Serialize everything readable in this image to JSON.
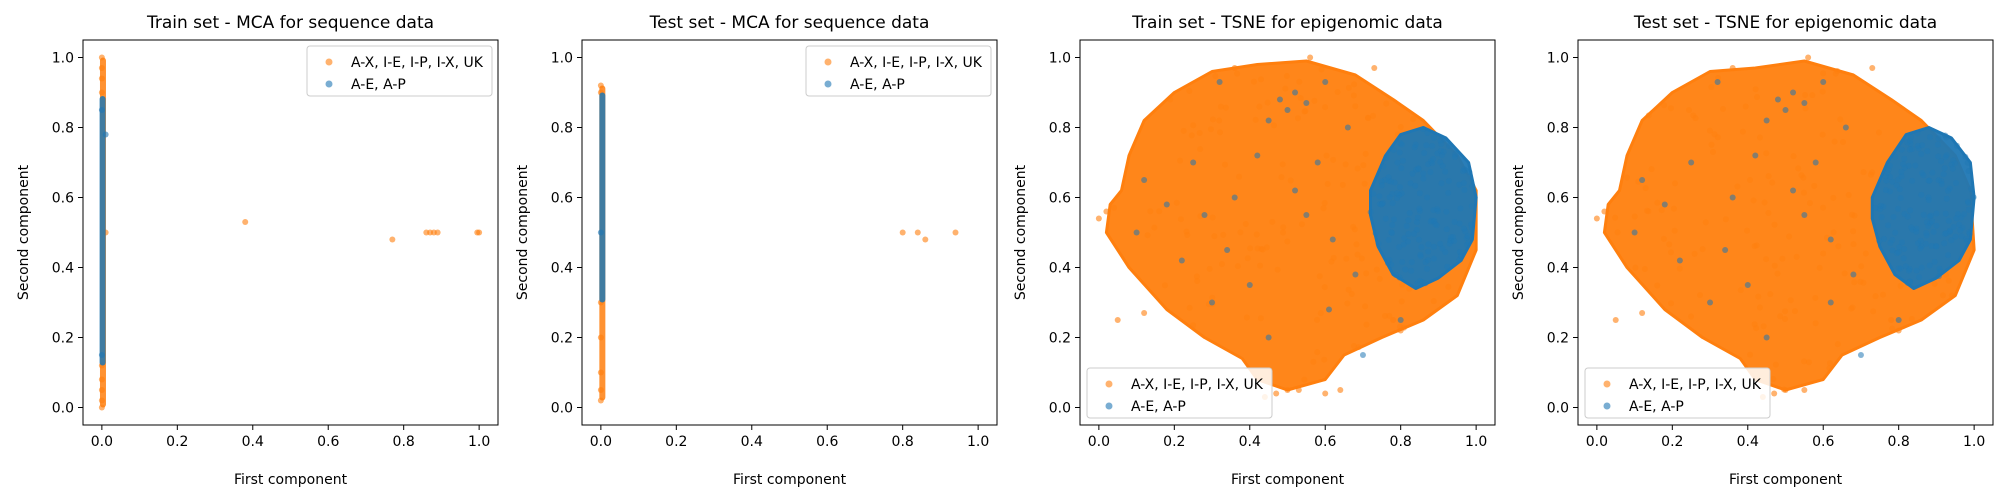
{
  "chart_data": [
    {
      "type": "scatter",
      "title": "Train set - MCA for sequence data",
      "xlabel": "First component",
      "ylabel": "Second component",
      "xlim": [
        -0.05,
        1.05
      ],
      "ylim": [
        -0.05,
        1.05
      ],
      "xticks": [
        "0.0",
        "0.2",
        "0.4",
        "0.6",
        "0.8",
        "1.0"
      ],
      "yticks": [
        "0.0",
        "0.2",
        "0.4",
        "0.6",
        "0.8",
        "1.0"
      ],
      "legend_position": "top-right",
      "series": [
        {
          "name": "A-X, I-E, I-P, I-X, UK",
          "color": "#ff7f0e",
          "points": [
            [
              0.0,
              0.0
            ],
            [
              0.0,
              0.02
            ],
            [
              0.0,
              0.05
            ],
            [
              0.0,
              0.08
            ],
            [
              0.0,
              0.12
            ],
            [
              0.0,
              0.9
            ],
            [
              0.0,
              0.94
            ],
            [
              0.0,
              0.97
            ],
            [
              0.0,
              1.0
            ],
            [
              0.01,
              0.5
            ],
            [
              0.38,
              0.53
            ],
            [
              0.77,
              0.48
            ],
            [
              0.86,
              0.5
            ],
            [
              0.87,
              0.5
            ],
            [
              0.88,
              0.5
            ],
            [
              0.89,
              0.5
            ],
            [
              1.0,
              0.5
            ],
            [
              0.995,
              0.5
            ]
          ],
          "vband": {
            "x": [
              -0.005,
              0.005
            ],
            "y": [
              0.0,
              1.0
            ]
          }
        },
        {
          "name": "A-E, A-P",
          "color": "#1f77b4",
          "points": [
            [
              0.01,
              0.78
            ],
            [
              0.0,
              0.15
            ],
            [
              0.0,
              0.85
            ]
          ],
          "vband": {
            "x": [
              -0.006,
              0.006
            ],
            "y": [
              0.12,
              0.89
            ]
          }
        }
      ]
    },
    {
      "type": "scatter",
      "title": "Test set - MCA for sequence data",
      "xlabel": "First component",
      "ylabel": "Second component",
      "xlim": [
        -0.05,
        1.05
      ],
      "ylim": [
        -0.05,
        1.05
      ],
      "xticks": [
        "0.0",
        "0.2",
        "0.4",
        "0.6",
        "0.8",
        "1.0"
      ],
      "yticks": [
        "0.0",
        "0.2",
        "0.4",
        "0.6",
        "0.8",
        "1.0"
      ],
      "legend_position": "top-right",
      "series": [
        {
          "name": "A-X, I-E, I-P, I-X, UK",
          "color": "#ff7f0e",
          "points": [
            [
              0.0,
              0.02
            ],
            [
              0.0,
              0.05
            ],
            [
              0.0,
              0.1
            ],
            [
              0.0,
              0.2
            ],
            [
              0.0,
              0.3
            ],
            [
              0.0,
              0.9
            ],
            [
              0.0,
              0.92
            ],
            [
              0.8,
              0.5
            ],
            [
              0.84,
              0.5
            ],
            [
              0.86,
              0.48
            ],
            [
              0.94,
              0.5
            ]
          ],
          "vband": {
            "x": [
              -0.004,
              0.004
            ],
            "y": [
              0.02,
              0.92
            ]
          }
        },
        {
          "name": "A-E, A-P",
          "color": "#1f77b4",
          "points": [
            [
              0.0,
              0.5
            ]
          ],
          "vband": {
            "x": [
              -0.004,
              0.004
            ],
            "y": [
              0.3,
              0.9
            ]
          }
        }
      ]
    },
    {
      "type": "scatter",
      "title": "Train set - TSNE for epigenomic data",
      "xlabel": "First component",
      "ylabel": "Second component",
      "xlim": [
        -0.05,
        1.05
      ],
      "ylim": [
        -0.05,
        1.05
      ],
      "xticks": [
        "0.0",
        "0.2",
        "0.4",
        "0.6",
        "0.8",
        "1.0"
      ],
      "yticks": [
        "0.0",
        "0.2",
        "0.4",
        "0.6",
        "0.8",
        "1.0"
      ],
      "legend_position": "bottom-left",
      "series": [
        {
          "name": "A-X, I-E, I-P, I-X, UK",
          "color": "#ff7f0e",
          "cloud": [
            [
              0.06,
              0.62
            ],
            [
              0.08,
              0.72
            ],
            [
              0.12,
              0.82
            ],
            [
              0.2,
              0.9
            ],
            [
              0.3,
              0.96
            ],
            [
              0.42,
              0.98
            ],
            [
              0.55,
              0.99
            ],
            [
              0.68,
              0.95
            ],
            [
              0.78,
              0.88
            ],
            [
              0.86,
              0.82
            ],
            [
              0.95,
              0.72
            ],
            [
              1.0,
              0.62
            ],
            [
              1.0,
              0.45
            ],
            [
              0.95,
              0.32
            ],
            [
              0.86,
              0.25
            ],
            [
              0.75,
              0.2
            ],
            [
              0.65,
              0.15
            ],
            [
              0.6,
              0.08
            ],
            [
              0.5,
              0.05
            ],
            [
              0.42,
              0.08
            ],
            [
              0.38,
              0.14
            ],
            [
              0.28,
              0.2
            ],
            [
              0.18,
              0.28
            ],
            [
              0.08,
              0.4
            ],
            [
              0.02,
              0.5
            ],
            [
              0.03,
              0.58
            ]
          ],
          "points": [
            [
              0.0,
              0.54
            ],
            [
              0.02,
              0.56
            ],
            [
              0.05,
              0.25
            ],
            [
              0.12,
              0.27
            ],
            [
              0.44,
              0.03
            ],
            [
              0.47,
              0.04
            ],
            [
              0.5,
              0.05
            ],
            [
              0.53,
              0.05
            ],
            [
              0.6,
              0.04
            ],
            [
              0.64,
              0.05
            ],
            [
              0.73,
              0.97
            ],
            [
              0.78,
              0.25
            ],
            [
              0.8,
              0.22
            ],
            [
              0.56,
              1.0
            ],
            [
              0.36,
              0.97
            ]
          ]
        },
        {
          "name": "A-E, A-P",
          "color": "#1f77b4",
          "cloud": [
            [
              0.72,
              0.62
            ],
            [
              0.76,
              0.72
            ],
            [
              0.8,
              0.78
            ],
            [
              0.86,
              0.8
            ],
            [
              0.92,
              0.77
            ],
            [
              0.98,
              0.7
            ],
            [
              1.0,
              0.6
            ],
            [
              0.99,
              0.48
            ],
            [
              0.96,
              0.42
            ],
            [
              0.9,
              0.37
            ],
            [
              0.84,
              0.34
            ],
            [
              0.78,
              0.38
            ],
            [
              0.74,
              0.46
            ],
            [
              0.72,
              0.55
            ]
          ],
          "points": [
            [
              0.5,
              0.85
            ],
            [
              0.52,
              0.9
            ],
            [
              0.48,
              0.88
            ],
            [
              0.55,
              0.87
            ],
            [
              0.6,
              0.93
            ],
            [
              0.45,
              0.82
            ],
            [
              0.32,
              0.93
            ],
            [
              0.25,
              0.7
            ],
            [
              0.18,
              0.58
            ],
            [
              0.1,
              0.5
            ],
            [
              0.34,
              0.45
            ],
            [
              0.4,
              0.35
            ],
            [
              0.55,
              0.55
            ],
            [
              0.62,
              0.48
            ],
            [
              0.68,
              0.38
            ],
            [
              0.45,
              0.2
            ],
            [
              0.3,
              0.3
            ],
            [
              0.22,
              0.42
            ],
            [
              0.12,
              0.65
            ],
            [
              0.58,
              0.7
            ],
            [
              0.66,
              0.8
            ],
            [
              0.7,
              0.15
            ],
            [
              0.52,
              0.62
            ],
            [
              0.42,
              0.72
            ],
            [
              0.36,
              0.6
            ],
            [
              0.28,
              0.55
            ],
            [
              0.8,
              0.25
            ],
            [
              0.61,
              0.28
            ]
          ]
        }
      ]
    },
    {
      "type": "scatter",
      "title": "Test set - TSNE for epigenomic data",
      "xlabel": "First component",
      "ylabel": "Second component",
      "xlim": [
        -0.05,
        1.05
      ],
      "ylim": [
        -0.05,
        1.05
      ],
      "xticks": [
        "0.0",
        "0.2",
        "0.4",
        "0.6",
        "0.8",
        "1.0"
      ],
      "yticks": [
        "0.0",
        "0.2",
        "0.4",
        "0.6",
        "0.8",
        "1.0"
      ],
      "legend_position": "bottom-left",
      "series": [
        {
          "name": "A-X, I-E, I-P, I-X, UK",
          "color": "#ff7f0e",
          "cloud": [
            [
              0.06,
              0.62
            ],
            [
              0.08,
              0.72
            ],
            [
              0.12,
              0.82
            ],
            [
              0.2,
              0.9
            ],
            [
              0.3,
              0.96
            ],
            [
              0.42,
              0.97
            ],
            [
              0.55,
              0.99
            ],
            [
              0.68,
              0.95
            ],
            [
              0.78,
              0.88
            ],
            [
              0.86,
              0.82
            ],
            [
              0.95,
              0.72
            ],
            [
              0.99,
              0.62
            ],
            [
              1.0,
              0.45
            ],
            [
              0.95,
              0.32
            ],
            [
              0.86,
              0.25
            ],
            [
              0.75,
              0.2
            ],
            [
              0.65,
              0.15
            ],
            [
              0.6,
              0.08
            ],
            [
              0.5,
              0.05
            ],
            [
              0.42,
              0.08
            ],
            [
              0.38,
              0.14
            ],
            [
              0.28,
              0.2
            ],
            [
              0.18,
              0.28
            ],
            [
              0.08,
              0.4
            ],
            [
              0.02,
              0.5
            ],
            [
              0.03,
              0.58
            ]
          ],
          "points": [
            [
              0.0,
              0.54
            ],
            [
              0.02,
              0.56
            ],
            [
              0.05,
              0.25
            ],
            [
              0.12,
              0.27
            ],
            [
              0.44,
              0.03
            ],
            [
              0.47,
              0.04
            ],
            [
              0.5,
              0.05
            ],
            [
              0.55,
              0.05
            ],
            [
              0.73,
              0.97
            ],
            [
              0.78,
              0.25
            ],
            [
              0.8,
              0.22
            ],
            [
              0.56,
              1.0
            ],
            [
              0.36,
              0.97
            ]
          ]
        },
        {
          "name": "A-E, A-P",
          "color": "#1f77b4",
          "cloud": [
            [
              0.73,
              0.6
            ],
            [
              0.77,
              0.7
            ],
            [
              0.82,
              0.78
            ],
            [
              0.88,
              0.8
            ],
            [
              0.94,
              0.77
            ],
            [
              0.99,
              0.7
            ],
            [
              1.0,
              0.6
            ],
            [
              0.99,
              0.48
            ],
            [
              0.96,
              0.42
            ],
            [
              0.9,
              0.37
            ],
            [
              0.84,
              0.34
            ],
            [
              0.79,
              0.38
            ],
            [
              0.75,
              0.46
            ],
            [
              0.73,
              0.54
            ]
          ],
          "points": [
            [
              0.5,
              0.85
            ],
            [
              0.52,
              0.9
            ],
            [
              0.48,
              0.88
            ],
            [
              0.55,
              0.87
            ],
            [
              0.6,
              0.93
            ],
            [
              0.45,
              0.82
            ],
            [
              0.32,
              0.93
            ],
            [
              0.25,
              0.7
            ],
            [
              0.18,
              0.58
            ],
            [
              0.1,
              0.5
            ],
            [
              0.34,
              0.45
            ],
            [
              0.4,
              0.35
            ],
            [
              0.55,
              0.55
            ],
            [
              0.62,
              0.48
            ],
            [
              0.68,
              0.38
            ],
            [
              0.45,
              0.2
            ],
            [
              0.3,
              0.3
            ],
            [
              0.22,
              0.42
            ],
            [
              0.12,
              0.65
            ],
            [
              0.58,
              0.7
            ],
            [
              0.66,
              0.8
            ],
            [
              0.7,
              0.15
            ],
            [
              0.52,
              0.62
            ],
            [
              0.42,
              0.72
            ],
            [
              0.36,
              0.6
            ],
            [
              0.8,
              0.25
            ],
            [
              0.62,
              0.3
            ]
          ]
        }
      ]
    }
  ]
}
